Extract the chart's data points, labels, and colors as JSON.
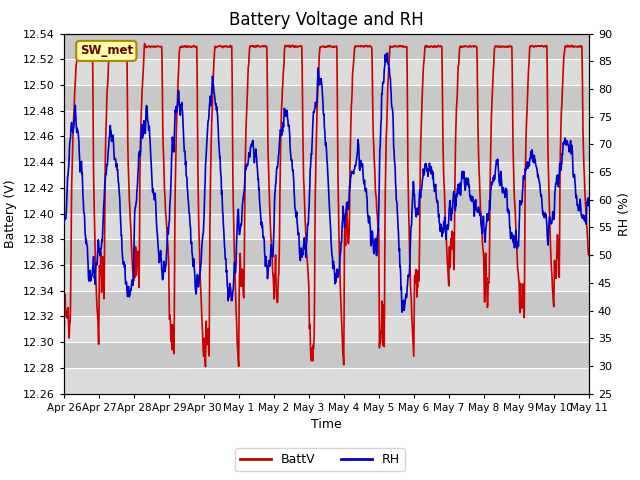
{
  "title": "Battery Voltage and RH",
  "xlabel": "Time",
  "ylabel_left": "Battery (V)",
  "ylabel_right": "RH (%)",
  "station_label": "SW_met",
  "ylim_left": [
    12.26,
    12.54
  ],
  "ylim_right": [
    25,
    90
  ],
  "yticks_left": [
    12.26,
    12.28,
    12.3,
    12.32,
    12.34,
    12.36,
    12.38,
    12.4,
    12.42,
    12.44,
    12.46,
    12.48,
    12.5,
    12.52,
    12.54
  ],
  "yticks_right": [
    25,
    30,
    35,
    40,
    45,
    50,
    55,
    60,
    65,
    70,
    75,
    80,
    85,
    90
  ],
  "xtick_labels": [
    "Apr 26",
    "Apr 27",
    "Apr 28",
    "Apr 29",
    "Apr 30",
    "May 1",
    "May 2",
    "May 3",
    "May 4",
    "May 5",
    "May 6",
    "May 7",
    "May 8",
    "May 9",
    "May 10",
    "May 11"
  ],
  "batt_color": "#cc0000",
  "rh_color": "#0000cc",
  "legend_labels": [
    "BattV",
    "RH"
  ],
  "bg_light": "#dcdcdc",
  "bg_dark": "#c8c8c8",
  "grid_color": "#ffffff",
  "title_fontsize": 12,
  "axis_fontsize": 9,
  "tick_fontsize": 8,
  "legend_fontsize": 9
}
